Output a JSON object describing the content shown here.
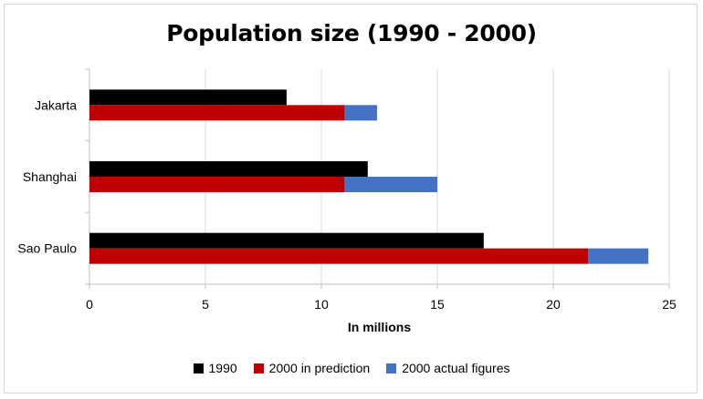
{
  "chart_data": {
    "type": "bar",
    "orientation": "horizontal",
    "stacked_series": [
      "2000 in prediction",
      "2000 actual figures"
    ],
    "title": "Population size (1990 - 2000)",
    "xlabel": "In millions",
    "ylabel": "",
    "xlim": [
      0,
      25
    ],
    "xticks": [
      "0",
      "5",
      "10",
      "15",
      "20",
      "25"
    ],
    "categories": [
      "Jakarta",
      "Shanghai",
      "Sao Paulo"
    ],
    "series": [
      {
        "name": "1990",
        "color": "#000000",
        "values": [
          8.5,
          12,
          17
        ]
      },
      {
        "name": "2000 in prediction",
        "color": "#c00000",
        "values": [
          11,
          11,
          21.5
        ]
      },
      {
        "name": "2000 actual figures",
        "color": "#4472c4",
        "values": [
          1.4,
          4,
          2.6
        ]
      }
    ],
    "grid": true,
    "legend_position": "bottom"
  }
}
